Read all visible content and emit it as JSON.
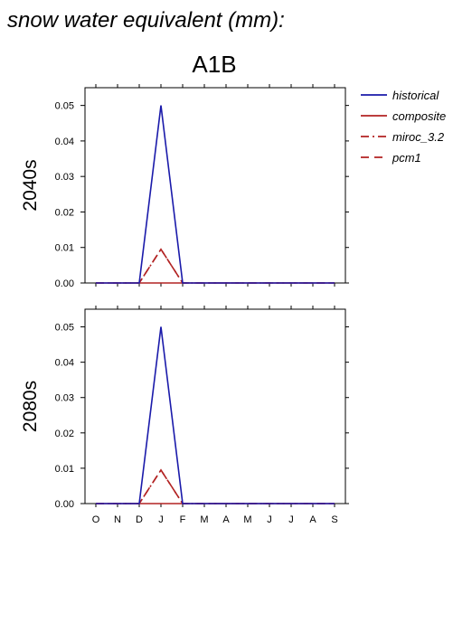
{
  "header": {
    "title": "snow water equivalent (mm):",
    "scenario": "A1B"
  },
  "colors": {
    "historical": "#1a1aaa",
    "composite": "#b22222",
    "miroc_3.2": "#b22222",
    "pcm1": "#b22222"
  },
  "legend": [
    {
      "key": "historical",
      "label": "historical",
      "style": "solid"
    },
    {
      "key": "composite",
      "label": "composite",
      "style": "solid"
    },
    {
      "key": "miroc_3.2",
      "label": "miroc_3.2",
      "style": "dashdot"
    },
    {
      "key": "pcm1",
      "label": "pcm1",
      "style": "dash"
    }
  ],
  "chart_data": [
    {
      "type": "line",
      "row_label": "2040s",
      "categories": [
        "O",
        "N",
        "D",
        "J",
        "F",
        "M",
        "A",
        "M",
        "J",
        "J",
        "A",
        "S"
      ],
      "ylim": [
        0,
        0.055
      ],
      "yticks": [
        "0.00",
        "0.01",
        "0.02",
        "0.03",
        "0.04",
        "0.05"
      ],
      "show_xtick_labels": false,
      "series": [
        {
          "name": "historical",
          "values": [
            0,
            0,
            0,
            0.05,
            0,
            0,
            0,
            0,
            0,
            0,
            0,
            0
          ]
        },
        {
          "name": "composite",
          "values": [
            0,
            0,
            0,
            0,
            0,
            0,
            0,
            0,
            0,
            0,
            0,
            0
          ]
        },
        {
          "name": "miroc_3.2",
          "values": [
            0,
            0,
            0,
            0.0095,
            0,
            0,
            0,
            0,
            0,
            0,
            0,
            0
          ]
        },
        {
          "name": "pcm1",
          "values": [
            0,
            0,
            0,
            0.0095,
            0,
            0,
            0,
            0,
            0,
            0,
            0,
            0
          ]
        }
      ]
    },
    {
      "type": "line",
      "row_label": "2080s",
      "categories": [
        "O",
        "N",
        "D",
        "J",
        "F",
        "M",
        "A",
        "M",
        "J",
        "J",
        "A",
        "S"
      ],
      "ylim": [
        0,
        0.055
      ],
      "yticks": [
        "0.00",
        "0.01",
        "0.02",
        "0.03",
        "0.04",
        "0.05"
      ],
      "show_xtick_labels": true,
      "series": [
        {
          "name": "historical",
          "values": [
            0,
            0,
            0,
            0.05,
            0,
            0,
            0,
            0,
            0,
            0,
            0,
            0
          ]
        },
        {
          "name": "composite",
          "values": [
            0,
            0,
            0,
            0,
            0,
            0,
            0,
            0,
            0,
            0,
            0,
            0
          ]
        },
        {
          "name": "miroc_3.2",
          "values": [
            0,
            0,
            0,
            0.0095,
            0,
            0,
            0,
            0,
            0,
            0,
            0,
            0
          ]
        },
        {
          "name": "pcm1",
          "values": [
            0,
            0,
            0,
            0.0095,
            0,
            0,
            0,
            0,
            0,
            0,
            0,
            0
          ]
        }
      ]
    }
  ]
}
